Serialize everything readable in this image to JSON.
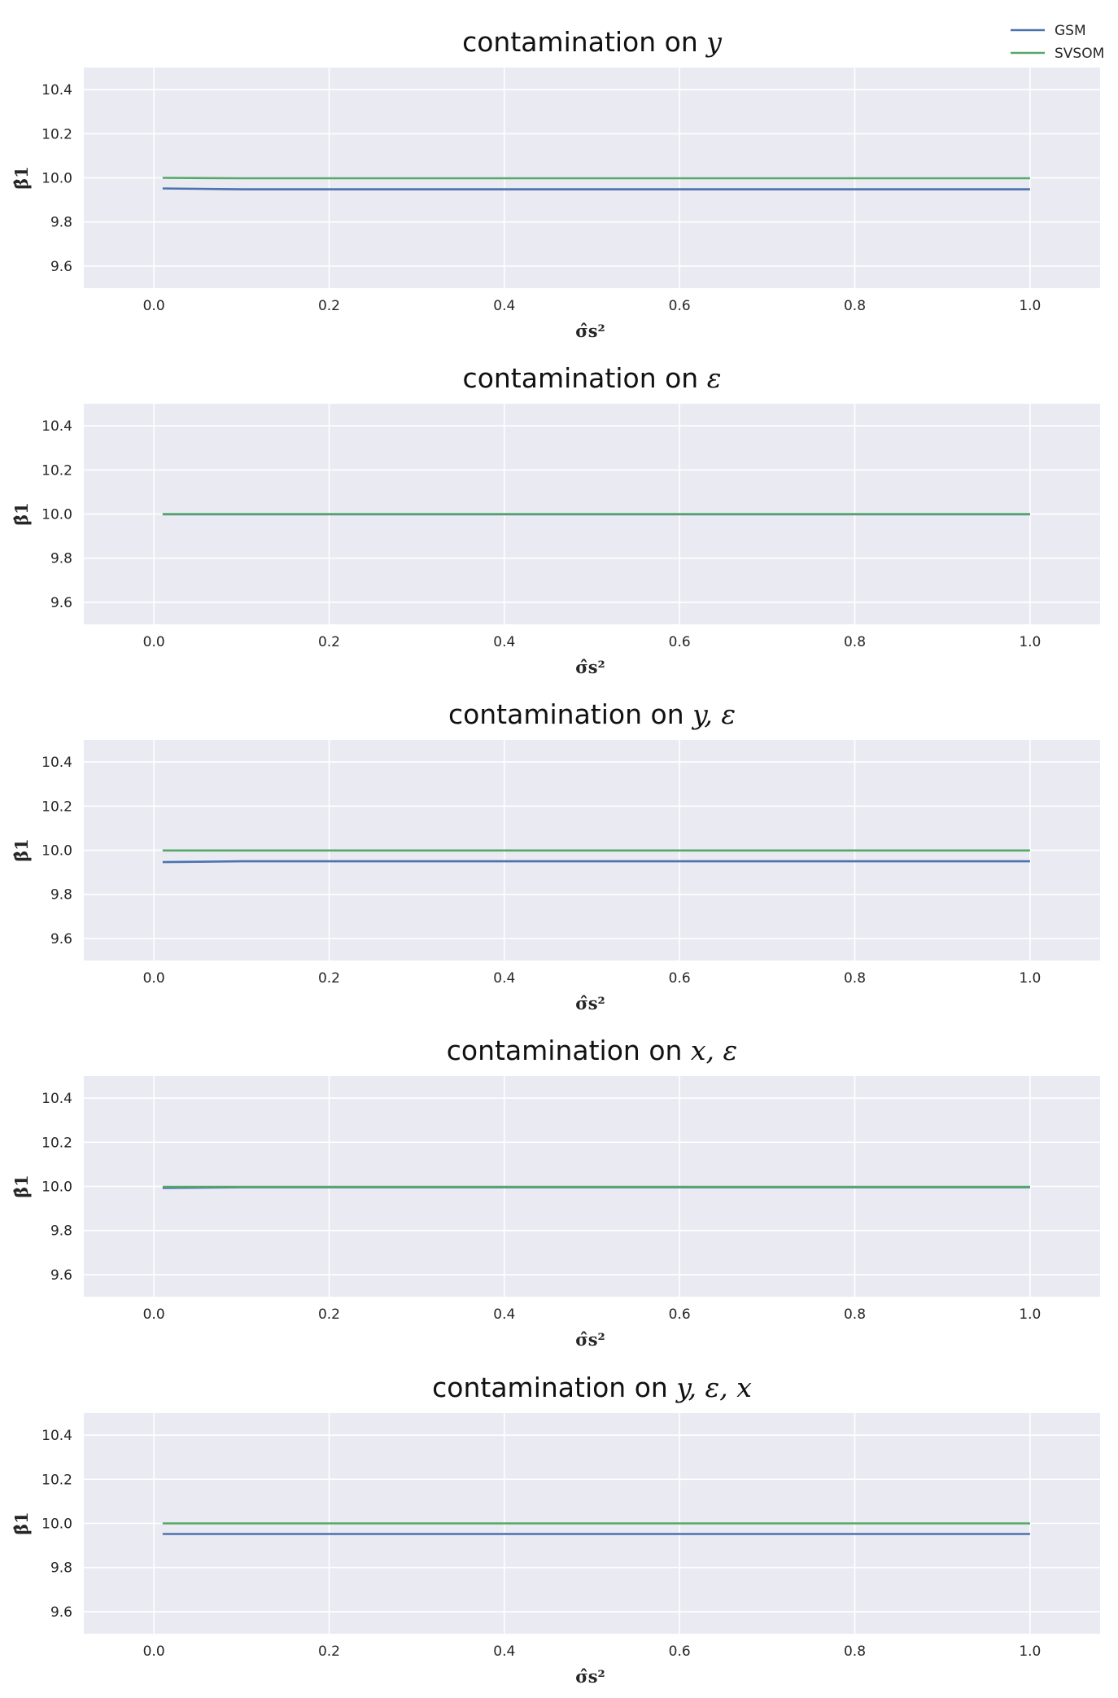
{
  "legend": {
    "position": "top-right",
    "items": [
      {
        "label": "GSM",
        "color": "#4c72b0"
      },
      {
        "label": "SVSOM",
        "color": "#55a868"
      }
    ]
  },
  "style": {
    "plot_background": "#eaeaf2",
    "grid_color": "#ffffff",
    "grid": true
  },
  "chart_data": [
    {
      "type": "line",
      "title": "contamination on y",
      "title_prefix": "contamination on ",
      "title_math": "y",
      "xlabel": "σ̂s²",
      "ylabel": "β̂1",
      "xlim": [
        -0.08,
        1.08
      ],
      "ylim": [
        9.5,
        10.5
      ],
      "xticks": [
        0.0,
        0.2,
        0.4,
        0.6,
        0.8,
        1.0
      ],
      "xtick_labels": [
        "0.0",
        "0.2",
        "0.4",
        "0.6",
        "0.8",
        "1.0"
      ],
      "yticks": [
        9.6,
        9.8,
        10.0,
        10.2,
        10.4
      ],
      "ytick_labels": [
        "9.6",
        "9.8",
        "10.0",
        "10.2",
        "10.4"
      ],
      "x": [
        0.01,
        0.1,
        0.2,
        0.3,
        0.4,
        0.5,
        0.6,
        0.7,
        0.8,
        0.9,
        1.0
      ],
      "series": [
        {
          "name": "GSM",
          "color": "#4c72b0",
          "values": [
            9.952,
            9.948,
            9.948,
            9.948,
            9.948,
            9.948,
            9.948,
            9.948,
            9.948,
            9.948,
            9.948
          ]
        },
        {
          "name": "SVSOM",
          "color": "#55a868",
          "values": [
            10.0,
            9.998,
            9.998,
            9.998,
            9.998,
            9.998,
            9.998,
            9.998,
            9.998,
            9.998,
            9.998
          ]
        }
      ]
    },
    {
      "type": "line",
      "title": "contamination on ε",
      "title_prefix": "contamination on ",
      "title_math": "ε",
      "xlabel": "σ̂s²",
      "ylabel": "β̂1",
      "xlim": [
        -0.08,
        1.08
      ],
      "ylim": [
        9.5,
        10.5
      ],
      "xticks": [
        0.0,
        0.2,
        0.4,
        0.6,
        0.8,
        1.0
      ],
      "xtick_labels": [
        "0.0",
        "0.2",
        "0.4",
        "0.6",
        "0.8",
        "1.0"
      ],
      "yticks": [
        9.6,
        9.8,
        10.0,
        10.2,
        10.4
      ],
      "ytick_labels": [
        "9.6",
        "9.8",
        "10.0",
        "10.2",
        "10.4"
      ],
      "x": [
        0.01,
        0.1,
        0.2,
        0.3,
        0.4,
        0.5,
        0.6,
        0.7,
        0.8,
        0.9,
        1.0
      ],
      "series": [
        {
          "name": "GSM",
          "color": "#4c72b0",
          "values": [
            9.999,
            9.999,
            9.999,
            9.999,
            9.999,
            9.999,
            9.999,
            9.999,
            9.999,
            9.999,
            9.999
          ]
        },
        {
          "name": "SVSOM",
          "color": "#55a868",
          "values": [
            10.0,
            10.0,
            10.0,
            10.0,
            10.0,
            10.0,
            10.0,
            10.0,
            10.0,
            10.0,
            10.0
          ]
        }
      ]
    },
    {
      "type": "line",
      "title": "contamination on y, ε",
      "title_prefix": "contamination on ",
      "title_math": "y, ε",
      "xlabel": "σ̂s²",
      "ylabel": "β̂1",
      "xlim": [
        -0.08,
        1.08
      ],
      "ylim": [
        9.5,
        10.5
      ],
      "xticks": [
        0.0,
        0.2,
        0.4,
        0.6,
        0.8,
        1.0
      ],
      "xtick_labels": [
        "0.0",
        "0.2",
        "0.4",
        "0.6",
        "0.8",
        "1.0"
      ],
      "yticks": [
        9.6,
        9.8,
        10.0,
        10.2,
        10.4
      ],
      "ytick_labels": [
        "9.6",
        "9.8",
        "10.0",
        "10.2",
        "10.4"
      ],
      "x": [
        0.01,
        0.1,
        0.2,
        0.3,
        0.4,
        0.5,
        0.6,
        0.7,
        0.8,
        0.9,
        1.0
      ],
      "series": [
        {
          "name": "GSM",
          "color": "#4c72b0",
          "values": [
            9.946,
            9.95,
            9.95,
            9.95,
            9.95,
            9.95,
            9.95,
            9.95,
            9.95,
            9.95,
            9.95
          ]
        },
        {
          "name": "SVSOM",
          "color": "#55a868",
          "values": [
            9.999,
            9.999,
            9.999,
            9.999,
            9.999,
            9.999,
            9.999,
            9.999,
            9.999,
            9.999,
            9.999
          ]
        }
      ]
    },
    {
      "type": "line",
      "title": "contamination on x, ε",
      "title_prefix": "contamination on ",
      "title_math": "x, ε",
      "xlabel": "σ̂s²",
      "ylabel": "β̂1",
      "xlim": [
        -0.08,
        1.08
      ],
      "ylim": [
        9.5,
        10.5
      ],
      "xticks": [
        0.0,
        0.2,
        0.4,
        0.6,
        0.8,
        1.0
      ],
      "xtick_labels": [
        "0.0",
        "0.2",
        "0.4",
        "0.6",
        "0.8",
        "1.0"
      ],
      "yticks": [
        9.6,
        9.8,
        10.0,
        10.2,
        10.4
      ],
      "ytick_labels": [
        "9.6",
        "9.8",
        "10.0",
        "10.2",
        "10.4"
      ],
      "x": [
        0.01,
        0.1,
        0.2,
        0.3,
        0.4,
        0.5,
        0.6,
        0.7,
        0.8,
        0.9,
        1.0
      ],
      "series": [
        {
          "name": "GSM",
          "color": "#4c72b0",
          "values": [
            9.993,
            9.996,
            9.996,
            9.996,
            9.996,
            9.996,
            9.996,
            9.996,
            9.996,
            9.996,
            9.996
          ]
        },
        {
          "name": "SVSOM",
          "color": "#55a868",
          "values": [
            9.998,
            9.998,
            9.998,
            9.998,
            9.998,
            9.998,
            9.998,
            9.998,
            9.998,
            9.998,
            9.998
          ]
        }
      ]
    },
    {
      "type": "line",
      "title": "contamination on y, ε, x",
      "title_prefix": "contamination on ",
      "title_math": "y, ε, x",
      "xlabel": "σ̂s²",
      "ylabel": "β̂1",
      "xlim": [
        -0.08,
        1.08
      ],
      "ylim": [
        9.5,
        10.5
      ],
      "xticks": [
        0.0,
        0.2,
        0.4,
        0.6,
        0.8,
        1.0
      ],
      "xtick_labels": [
        "0.0",
        "0.2",
        "0.4",
        "0.6",
        "0.8",
        "1.0"
      ],
      "yticks": [
        9.6,
        9.8,
        10.0,
        10.2,
        10.4
      ],
      "ytick_labels": [
        "9.6",
        "9.8",
        "10.0",
        "10.2",
        "10.4"
      ],
      "x": [
        0.01,
        0.1,
        0.2,
        0.3,
        0.4,
        0.5,
        0.6,
        0.7,
        0.8,
        0.9,
        1.0
      ],
      "series": [
        {
          "name": "GSM",
          "color": "#4c72b0",
          "values": [
            9.952,
            9.952,
            9.952,
            9.952,
            9.952,
            9.952,
            9.952,
            9.952,
            9.952,
            9.952,
            9.952
          ]
        },
        {
          "name": "SVSOM",
          "color": "#55a868",
          "values": [
            10.0,
            10.0,
            10.0,
            10.0,
            10.0,
            10.0,
            10.0,
            10.0,
            10.0,
            10.0,
            10.0
          ]
        }
      ]
    }
  ]
}
